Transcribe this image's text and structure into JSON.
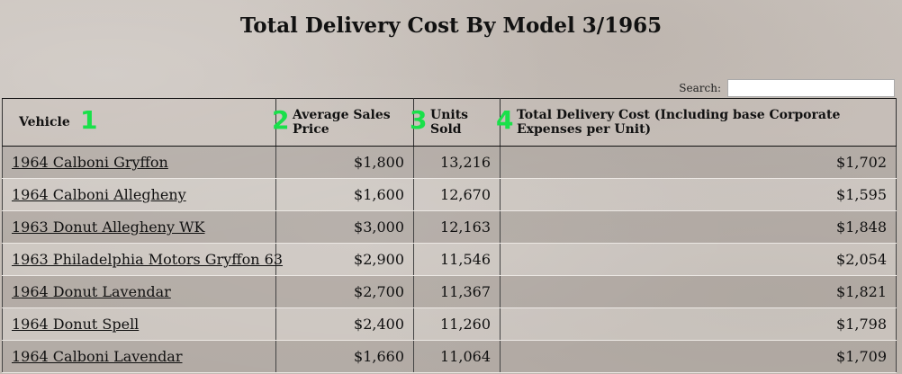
{
  "page": {
    "title": "Total Delivery Cost By Model 3/1965"
  },
  "search": {
    "label": "Search:",
    "value": "",
    "placeholder": ""
  },
  "table": {
    "columns": [
      {
        "label": "Vehicle",
        "marker": "1"
      },
      {
        "label": "Average Sales Price",
        "marker": "2"
      },
      {
        "label": "Units Sold",
        "marker": "3"
      },
      {
        "label": "Total Delivery Cost (Including base Corporate Expenses per Unit)",
        "marker": "4"
      }
    ],
    "rows": [
      {
        "vehicle": "1964 Calboni Gryffon",
        "price": "$1,800",
        "units": "13,216",
        "cost": "$1,702"
      },
      {
        "vehicle": "1964 Calboni Allegheny",
        "price": "$1,600",
        "units": "12,670",
        "cost": "$1,595"
      },
      {
        "vehicle": "1963 Donut Allegheny WK",
        "price": "$3,000",
        "units": "12,163",
        "cost": "$1,848"
      },
      {
        "vehicle": "1963 Philadelphia Motors Gryffon 63",
        "price": "$2,900",
        "units": "11,546",
        "cost": "$2,054"
      },
      {
        "vehicle": "1964 Donut Lavendar",
        "price": "$2,700",
        "units": "11,367",
        "cost": "$1,821"
      },
      {
        "vehicle": "1964 Donut Spell",
        "price": "$2,400",
        "units": "11,260",
        "cost": "$1,798"
      },
      {
        "vehicle": "1964 Calboni Lavendar",
        "price": "$1,660",
        "units": "11,064",
        "cost": "$1,709"
      }
    ]
  },
  "colors": {
    "marker": "#19e04a",
    "background": "#c8c1bb"
  }
}
